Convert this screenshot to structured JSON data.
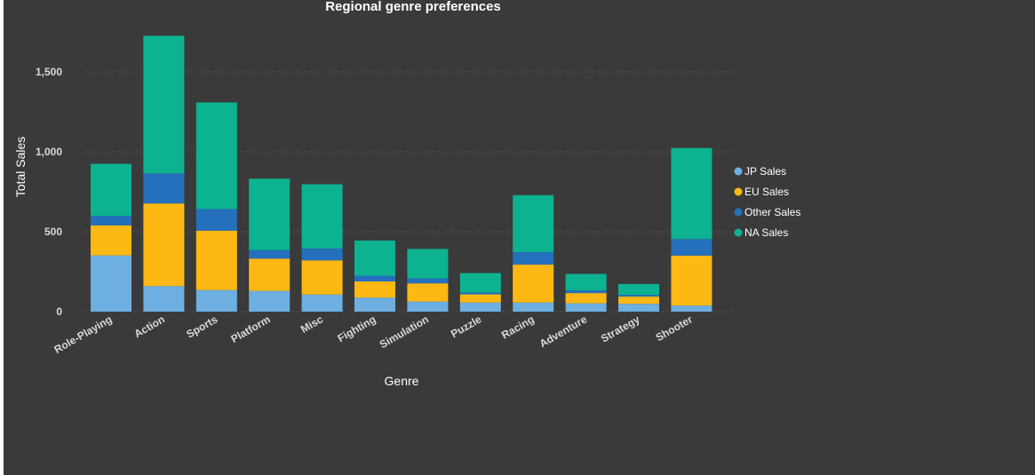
{
  "chart_data": {
    "type": "bar",
    "stacked": true,
    "title": "Regional genre preferences",
    "xlabel": "Genre",
    "ylabel": "Total Sales",
    "ylim": [
      0,
      1800
    ],
    "yticks": [
      0,
      500,
      1000,
      1500
    ],
    "ytick_labels": [
      "0",
      "500",
      "1,000",
      "1,500"
    ],
    "grid": true,
    "legend_position": "right",
    "categories": [
      "Role-Playing",
      "Action",
      "Sports",
      "Platform",
      "Misc",
      "Fighting",
      "Simulation",
      "Puzzle",
      "Racing",
      "Adventure",
      "Strategy",
      "Shooter"
    ],
    "series": [
      {
        "name": "JP Sales",
        "color": "#6cafe0",
        "values": [
          352,
          160,
          135,
          130,
          107,
          88,
          63,
          57,
          57,
          52,
          49,
          38
        ]
      },
      {
        "name": "EU Sales",
        "color": "#fdb813",
        "values": [
          188,
          517,
          372,
          202,
          214,
          101,
          114,
          51,
          237,
          64,
          45,
          313
        ]
      },
      {
        "name": "Other Sales",
        "color": "#2470bd",
        "values": [
          59,
          188,
          135,
          53,
          74,
          36,
          31,
          12,
          78,
          17,
          11,
          103
        ]
      },
      {
        "name": "NA Sales",
        "color": "#0db290",
        "values": [
          326,
          861,
          667,
          447,
          402,
          220,
          184,
          121,
          357,
          103,
          68,
          570
        ]
      }
    ]
  }
}
